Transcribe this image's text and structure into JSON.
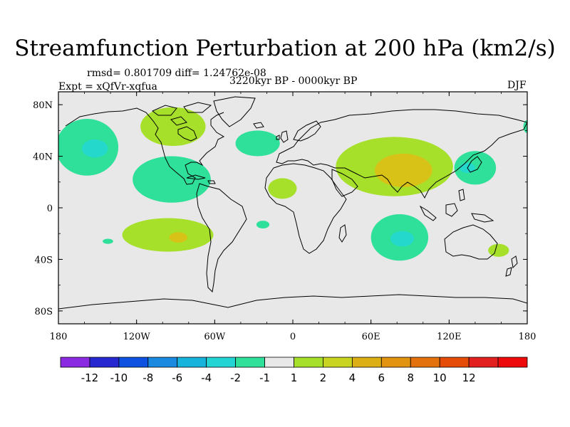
{
  "title": "Streamfunction Perturbation at 200 hPa (km2/s)",
  "stats_text": "rmsd= 0.801709 diff= 1.24762e-08",
  "period_text": "3220kyr BP - 0000kyr BP",
  "experiment_text": "Expt = xQfVr-xqfua",
  "season_text": "DJF",
  "map": {
    "lon_range": [
      -180,
      180
    ],
    "lat_range": [
      -90,
      90
    ],
    "ocean_land_fill": "#e8e8e8",
    "coastline_color": "#000000",
    "lon_ticks": [
      {
        "value": -180,
        "label": "180"
      },
      {
        "value": -120,
        "label": "120W"
      },
      {
        "value": -60,
        "label": "60W"
      },
      {
        "value": 0,
        "label": "0"
      },
      {
        "value": 60,
        "label": "60E"
      },
      {
        "value": 120,
        "label": "120E"
      },
      {
        "value": 180,
        "label": "180"
      }
    ],
    "lat_ticks": [
      {
        "value": 80,
        "label": "80N"
      },
      {
        "value": 40,
        "label": "40N"
      },
      {
        "value": 0,
        "label": "0"
      },
      {
        "value": -40,
        "label": "40S"
      },
      {
        "value": -80,
        "label": "80S"
      }
    ],
    "anomaly_regions": [
      {
        "lon": -158,
        "lat": 47,
        "rlon": 24,
        "rlat": 22,
        "level": "-2",
        "color": "#2fe09a"
      },
      {
        "lon": -152,
        "lat": 46,
        "rlon": 10,
        "rlat": 7,
        "level": "-4",
        "color": "#24d8cc"
      },
      {
        "lon": -93,
        "lat": 22,
        "rlon": 30,
        "rlat": 18,
        "level": "-2",
        "color": "#2fe09a"
      },
      {
        "lon": -92,
        "lat": 63,
        "rlon": 25,
        "rlat": 15,
        "level": "2",
        "color": "#a6e02a"
      },
      {
        "lon": -27,
        "lat": 50,
        "rlon": 17,
        "rlat": 10,
        "level": "-2",
        "color": "#2fe09a"
      },
      {
        "lon": -8,
        "lat": 15,
        "rlon": 11,
        "rlat": 8,
        "level": "2",
        "color": "#a6e02a"
      },
      {
        "lon": -23,
        "lat": -13,
        "rlon": 5,
        "rlat": 3,
        "level": "-2",
        "color": "#2fe09a"
      },
      {
        "lon": -96,
        "lat": -21,
        "rlon": 35,
        "rlat": 13,
        "level": "2",
        "color": "#a6e02a"
      },
      {
        "lon": -88,
        "lat": -23,
        "rlon": 7,
        "rlat": 4,
        "level": "4",
        "color": "#d8c217"
      },
      {
        "lon": -142,
        "lat": -26,
        "rlon": 4,
        "rlat": 2,
        "level": "-2",
        "color": "#2fe09a"
      },
      {
        "lon": 78,
        "lat": 32,
        "rlon": 45,
        "rlat": 23,
        "level": "2",
        "color": "#a6e02a"
      },
      {
        "lon": 85,
        "lat": 29,
        "rlon": 22,
        "rlat": 13,
        "level": "4",
        "color": "#d8c217"
      },
      {
        "lon": 140,
        "lat": 31,
        "rlon": 16,
        "rlat": 13,
        "level": "-2",
        "color": "#2fe09a"
      },
      {
        "lon": 134,
        "lat": 31,
        "rlon": 6,
        "rlat": 4,
        "level": "-4",
        "color": "#24d8cc"
      },
      {
        "lon": 180,
        "lat": 63,
        "rlon": 3,
        "rlat": 5,
        "level": "-2",
        "color": "#2fe09a"
      },
      {
        "lon": 82,
        "lat": -23,
        "rlon": 22,
        "rlat": 18,
        "level": "-2",
        "color": "#2fe09a"
      },
      {
        "lon": 84,
        "lat": -24,
        "rlon": 9,
        "rlat": 6,
        "level": "-4",
        "color": "#24d8cc"
      },
      {
        "lon": 158,
        "lat": -33,
        "rlon": 8,
        "rlat": 5,
        "level": "2",
        "color": "#a6e02a"
      }
    ]
  },
  "colorbar": {
    "colors": [
      "#8a2be2",
      "#2828d0",
      "#0d52e0",
      "#1a8ae0",
      "#16b4dc",
      "#22d4d4",
      "#2fe09a",
      "#e8e8e8",
      "#a6e02a",
      "#c8d420",
      "#dcb014",
      "#e29410",
      "#e4720c",
      "#e44c08",
      "#e22020",
      "#ee0a0a"
    ],
    "labels": [
      "-12",
      "-10",
      "-8",
      "-6",
      "-4",
      "-2",
      "-1",
      "1",
      "2",
      "4",
      "6",
      "8",
      "10",
      "12"
    ]
  }
}
